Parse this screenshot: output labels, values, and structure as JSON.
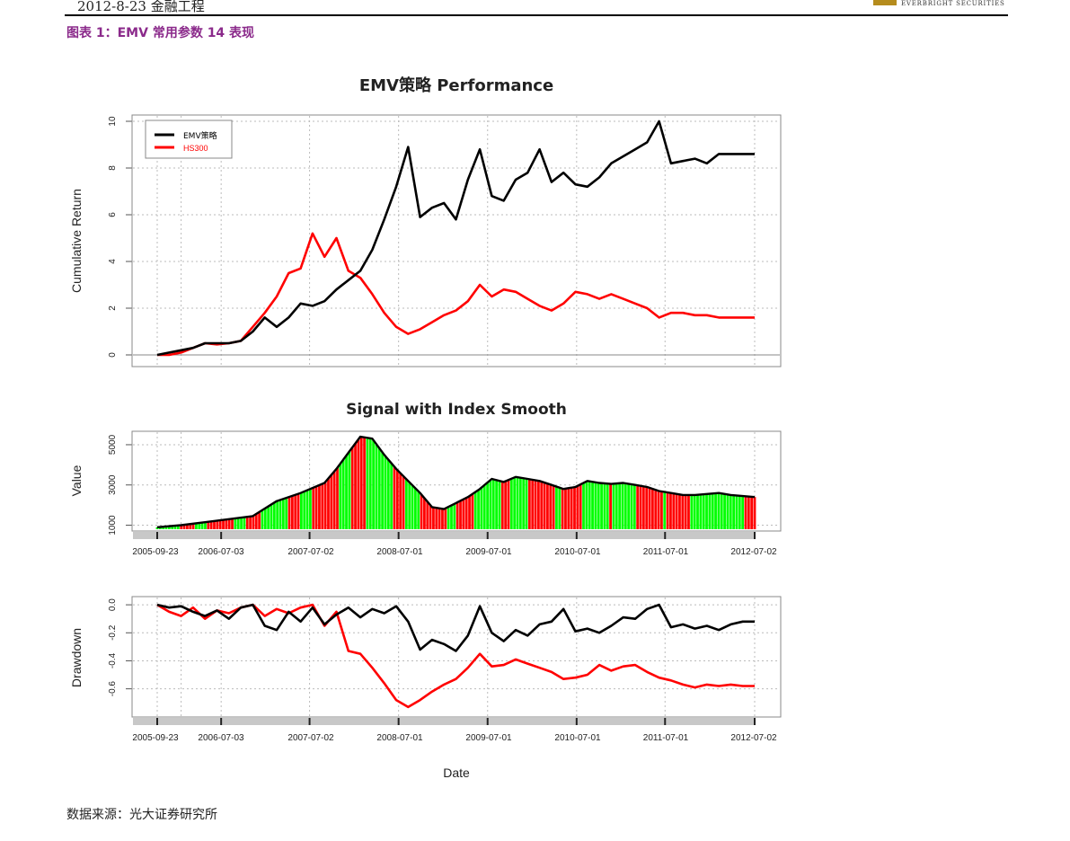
{
  "header": {
    "date_section": "2012-8-23  金融工程",
    "logo_text": "EVERBRIGHT SECURITIES"
  },
  "caption": "图表 1：EMV 常用参数 14 表现",
  "source": "数据来源：光大证券研究所",
  "colors": {
    "strategy": "#000000",
    "index": "#ff0000",
    "signal_long": "#00ff00",
    "signal_short": "#ff0000",
    "grid": "#bbbbbb",
    "caption": "#8b2a8b"
  },
  "chart_data": [
    {
      "type": "line",
      "title": "EMV策略 Performance",
      "xlabel": "",
      "ylabel": "Cumulative Return",
      "ylim": [
        0,
        10
      ],
      "yticks": [
        0,
        2,
        4,
        6,
        8,
        10
      ],
      "legend": {
        "position": "top-left",
        "entries": [
          "EMV策略",
          "HS300"
        ]
      },
      "x": [
        0,
        0.02,
        0.04,
        0.06,
        0.08,
        0.1,
        0.12,
        0.14,
        0.16,
        0.18,
        0.2,
        0.22,
        0.24,
        0.26,
        0.28,
        0.3,
        0.32,
        0.34,
        0.36,
        0.38,
        0.4,
        0.42,
        0.44,
        0.46,
        0.48,
        0.5,
        0.52,
        0.54,
        0.56,
        0.58,
        0.6,
        0.62,
        0.64,
        0.66,
        0.68,
        0.7,
        0.72,
        0.74,
        0.76,
        0.78,
        0.8,
        0.82,
        0.84,
        0.86,
        0.88,
        0.9,
        0.92,
        0.94,
        0.96,
        0.98,
        1.0
      ],
      "series": [
        {
          "name": "EMV策略",
          "values": [
            0,
            0.1,
            0.2,
            0.3,
            0.5,
            0.5,
            0.5,
            0.6,
            1.0,
            1.6,
            1.2,
            1.6,
            2.2,
            2.1,
            2.3,
            2.8,
            3.2,
            3.6,
            4.5,
            5.8,
            7.2,
            8.9,
            5.9,
            6.3,
            6.5,
            5.8,
            7.5,
            8.8,
            6.8,
            6.6,
            7.5,
            7.8,
            8.8,
            7.4,
            7.8,
            7.3,
            7.2,
            7.6,
            8.2,
            8.5,
            8.8,
            9.1,
            10.0,
            8.2,
            8.3,
            8.4,
            8.2,
            8.6,
            8.6,
            8.6,
            8.6
          ]
        },
        {
          "name": "HS300",
          "values": [
            0,
            0.0,
            0.1,
            0.3,
            0.5,
            0.45,
            0.5,
            0.6,
            1.2,
            1.8,
            2.5,
            3.5,
            3.7,
            5.2,
            4.2,
            5.0,
            3.6,
            3.3,
            2.6,
            1.8,
            1.2,
            0.9,
            1.1,
            1.4,
            1.7,
            1.9,
            2.3,
            3.0,
            2.5,
            2.8,
            2.7,
            2.4,
            2.1,
            1.9,
            2.2,
            2.7,
            2.6,
            2.4,
            2.6,
            2.4,
            2.2,
            2.0,
            1.6,
            1.8,
            1.8,
            1.7,
            1.7,
            1.6,
            1.6,
            1.6,
            1.6
          ]
        }
      ]
    },
    {
      "type": "area",
      "title": "Signal with Index Smooth",
      "xlabel": "",
      "ylabel": "Value",
      "ylim": [
        800,
        5400
      ],
      "yticks": [
        1000,
        3000,
        5000
      ],
      "x_tick_labels": [
        "2005-09-23",
        "2006-07-03",
        "2007-07-02",
        "2008-07-01",
        "2009-07-01",
        "2010-07-01",
        "2011-07-01",
        "2012-07-02"
      ],
      "x": [
        0,
        0.04,
        0.08,
        0.12,
        0.16,
        0.2,
        0.24,
        0.28,
        0.3,
        0.32,
        0.34,
        0.36,
        0.38,
        0.4,
        0.42,
        0.44,
        0.46,
        0.48,
        0.5,
        0.52,
        0.54,
        0.56,
        0.58,
        0.6,
        0.62,
        0.64,
        0.66,
        0.68,
        0.7,
        0.72,
        0.74,
        0.76,
        0.78,
        0.8,
        0.82,
        0.84,
        0.86,
        0.88,
        0.9,
        0.92,
        0.94,
        0.96,
        0.98,
        1.0
      ],
      "series": [
        {
          "name": "Index Smooth",
          "values": [
            900,
            1000,
            1150,
            1300,
            1450,
            2200,
            2600,
            3100,
            3800,
            4600,
            5400,
            5300,
            4500,
            3800,
            3200,
            2600,
            1900,
            1800,
            2100,
            2400,
            2800,
            3300,
            3150,
            3400,
            3300,
            3200,
            3000,
            2800,
            2900,
            3200,
            3100,
            3050,
            3100,
            3000,
            2900,
            2700,
            2600,
            2500,
            2500,
            2550,
            2600,
            2500,
            2450,
            2400
          ]
        }
      ],
      "signal_stripes": "green = long, red = short"
    },
    {
      "type": "line",
      "title": "",
      "xlabel": "Date",
      "ylabel": "Drawdown",
      "ylim": [
        -0.75,
        0.02
      ],
      "yticks": [
        0.0,
        -0.2,
        -0.4,
        -0.6
      ],
      "x_tick_labels": [
        "2005-09-23",
        "2006-07-03",
        "2007-07-02",
        "2008-07-01",
        "2009-07-01",
        "2010-07-01",
        "2011-07-01",
        "2012-07-02"
      ],
      "x": [
        0,
        0.02,
        0.04,
        0.06,
        0.08,
        0.1,
        0.12,
        0.14,
        0.16,
        0.18,
        0.2,
        0.22,
        0.24,
        0.26,
        0.28,
        0.3,
        0.32,
        0.34,
        0.36,
        0.38,
        0.4,
        0.42,
        0.44,
        0.46,
        0.48,
        0.5,
        0.52,
        0.54,
        0.56,
        0.58,
        0.6,
        0.62,
        0.64,
        0.66,
        0.68,
        0.7,
        0.72,
        0.74,
        0.76,
        0.78,
        0.8,
        0.82,
        0.84,
        0.86,
        0.88,
        0.9,
        0.92,
        0.94,
        0.96,
        0.98,
        1.0
      ],
      "series": [
        {
          "name": "EMV策略",
          "values": [
            0,
            -0.02,
            -0.01,
            -0.05,
            -0.08,
            -0.04,
            -0.1,
            -0.02,
            0.0,
            -0.15,
            -0.18,
            -0.05,
            -0.12,
            -0.02,
            -0.14,
            -0.07,
            -0.02,
            -0.09,
            -0.03,
            -0.06,
            -0.01,
            -0.12,
            -0.32,
            -0.25,
            -0.28,
            -0.33,
            -0.22,
            -0.01,
            -0.2,
            -0.26,
            -0.18,
            -0.22,
            -0.14,
            -0.12,
            -0.03,
            -0.19,
            -0.17,
            -0.2,
            -0.15,
            -0.09,
            -0.1,
            -0.03,
            0.0,
            -0.16,
            -0.14,
            -0.17,
            -0.15,
            -0.18,
            -0.14,
            -0.12,
            -0.12
          ]
        },
        {
          "name": "HS300",
          "values": [
            0,
            -0.05,
            -0.08,
            -0.02,
            -0.1,
            -0.04,
            -0.06,
            -0.02,
            0.0,
            -0.08,
            -0.03,
            -0.06,
            -0.02,
            0.0,
            -0.15,
            -0.05,
            -0.33,
            -0.35,
            -0.45,
            -0.56,
            -0.68,
            -0.73,
            -0.68,
            -0.62,
            -0.57,
            -0.53,
            -0.45,
            -0.35,
            -0.44,
            -0.43,
            -0.39,
            -0.42,
            -0.45,
            -0.48,
            -0.53,
            -0.52,
            -0.5,
            -0.43,
            -0.47,
            -0.44,
            -0.43,
            -0.48,
            -0.52,
            -0.54,
            -0.57,
            -0.59,
            -0.57,
            -0.58,
            -0.57,
            -0.58,
            -0.58
          ]
        }
      ]
    }
  ]
}
